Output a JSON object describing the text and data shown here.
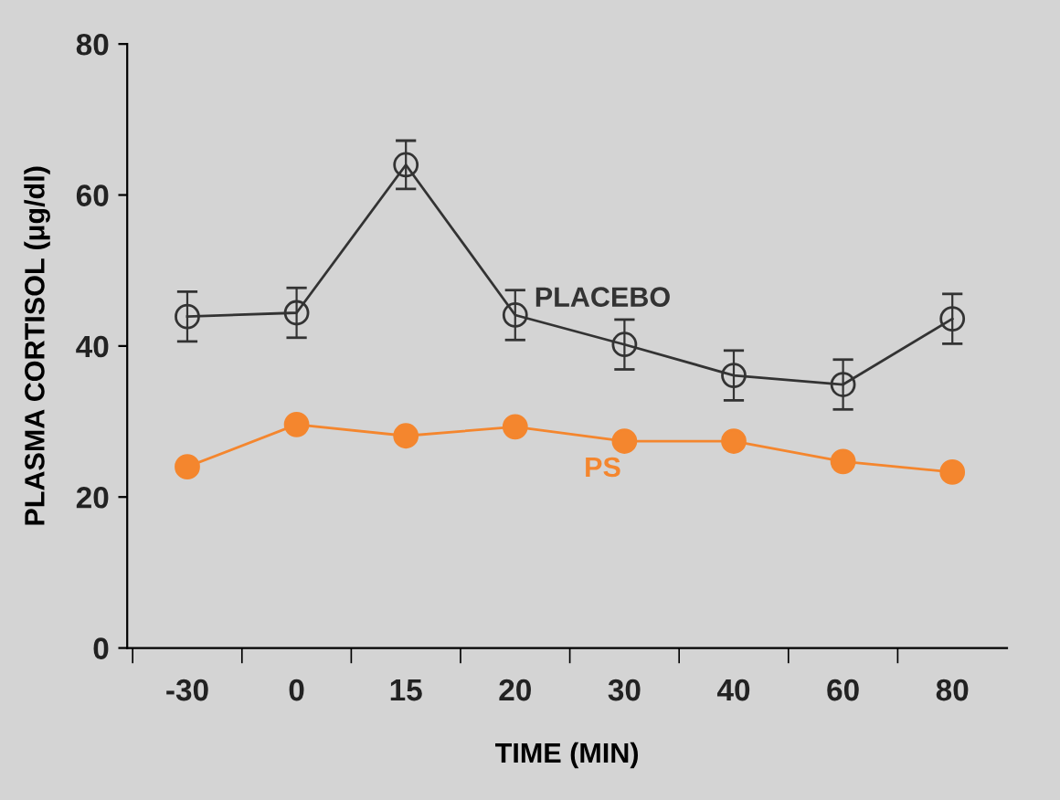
{
  "chart_data": {
    "type": "line",
    "xlabel": "TIME (MIN)",
    "ylabel": "PLASMA CORTISOL (μg/dl)",
    "categories": [
      "-30",
      "0",
      "15",
      "20",
      "30",
      "40",
      "60",
      "80"
    ],
    "ylim": [
      0,
      80
    ],
    "yticks": [
      0,
      20,
      40,
      60,
      80
    ],
    "grid": false,
    "legend": false,
    "marker": "circle",
    "series": [
      {
        "name": "PLACEBO",
        "color": "#333333",
        "values": [
          43.9,
          44.4,
          64,
          44.1,
          40.2,
          36.1,
          34.9,
          43.6
        ],
        "errors": [
          3.3,
          3.3,
          3.2,
          3.3,
          3.3,
          3.3,
          3.3,
          3.3
        ]
      },
      {
        "name": "PS",
        "color": "#f4862e",
        "values": [
          24,
          29.6,
          28.1,
          29.3,
          27.4,
          27.4,
          24.7,
          23.3
        ]
      }
    ]
  }
}
